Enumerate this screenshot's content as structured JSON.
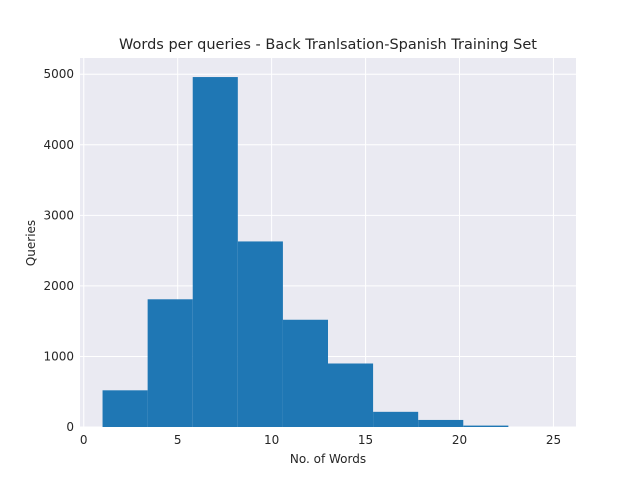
{
  "chart_data": {
    "type": "bar",
    "title": "Words per queries - Back Tranlsation-Spanish Training Set",
    "xlabel": "No. of Words",
    "ylabel": "Queries",
    "xlim": [
      -0.2,
      26.2
    ],
    "ylim": [
      0,
      5230
    ],
    "grid": true,
    "legend": "none",
    "colors": {
      "bar": "#1f77b4",
      "plot_background": "#eaeaf2",
      "grid": "#ffffff",
      "text": "#262626"
    },
    "x_ticks": [
      0,
      5,
      10,
      15,
      20,
      25
    ],
    "y_ticks": [
      0,
      1000,
      2000,
      3000,
      4000,
      5000
    ],
    "bins": [
      {
        "x0": 1.0,
        "x1": 3.4,
        "value": 520
      },
      {
        "x0": 3.4,
        "x1": 5.8,
        "value": 1810
      },
      {
        "x0": 5.8,
        "x1": 8.2,
        "value": 4960
      },
      {
        "x0": 8.2,
        "x1": 10.6,
        "value": 2630
      },
      {
        "x0": 10.6,
        "x1": 13.0,
        "value": 1520
      },
      {
        "x0": 13.0,
        "x1": 15.4,
        "value": 900
      },
      {
        "x0": 15.4,
        "x1": 17.8,
        "value": 215
      },
      {
        "x0": 17.8,
        "x1": 20.2,
        "value": 100
      },
      {
        "x0": 20.2,
        "x1": 22.6,
        "value": 20
      },
      {
        "x0": 22.6,
        "x1": 25.0,
        "value": 0
      }
    ]
  }
}
